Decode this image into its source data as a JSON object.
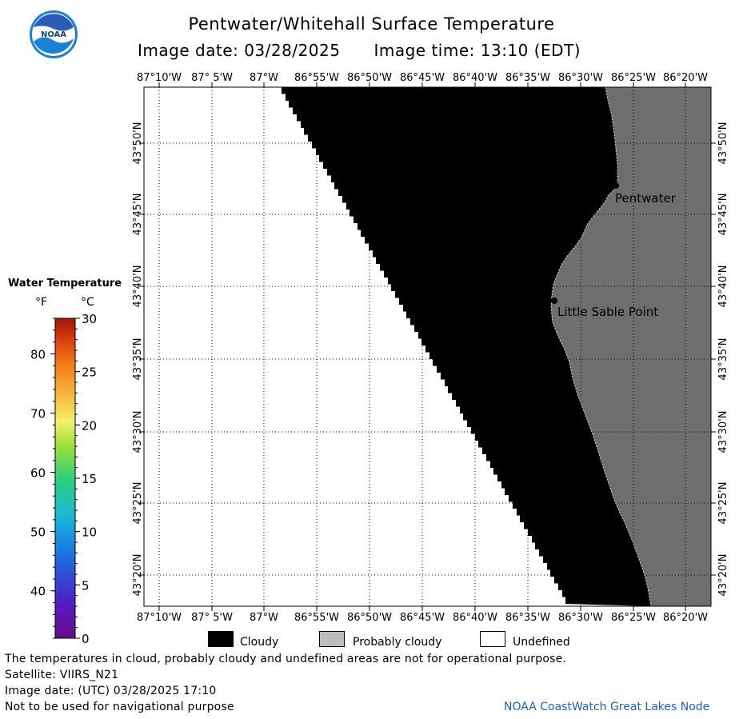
{
  "header": {
    "logo_text": "NOAA",
    "title": "Pentwater/Whitehall Surface Temperature",
    "image_date_label": "Image date: 03/28/2025",
    "image_time_label": "Image time: 13:10 (EDT)"
  },
  "colorbar": {
    "title": "Water Temperature",
    "unit_f": "°F",
    "unit_c": "°C",
    "f_ticks": [
      "80",
      "70",
      "60",
      "50",
      "40"
    ],
    "c_ticks": [
      "30",
      "25",
      "20",
      "15",
      "10",
      "5",
      "0"
    ]
  },
  "map": {
    "lon_labels": [
      "87°10'W",
      "87° 5'W",
      "87°W",
      "86°55'W",
      "86°50'W",
      "86°45'W",
      "86°40'W",
      "86°35'W",
      "86°30'W",
      "86°25'W",
      "86°20'W"
    ],
    "lat_labels": [
      "43°50'N",
      "43°45'N",
      "43°40'N",
      "43°35'N",
      "43°30'N",
      "43°25'N",
      "43°20'N"
    ],
    "places": [
      {
        "name": "Pentwater"
      },
      {
        "name": "Little Sable Point"
      }
    ],
    "colors": {
      "cloudy": "#000000",
      "probably_cloudy": "#6e6e6e",
      "undefined": "#ffffff"
    }
  },
  "key": {
    "cloudy": "Cloudy",
    "probably_cloudy": "Probably cloudy",
    "undefined": "Undefined"
  },
  "footer": {
    "line1": "The temperatures in cloud, probably cloudy and undefined areas are not for operational purpose.",
    "line2": "Satellite: VIIRS_N21",
    "line3": "Image date: (UTC) 03/28/2025  17:10",
    "line4": "Not to be used for navigational purpose",
    "credit": "NOAA CoastWatch Great Lakes Node"
  }
}
